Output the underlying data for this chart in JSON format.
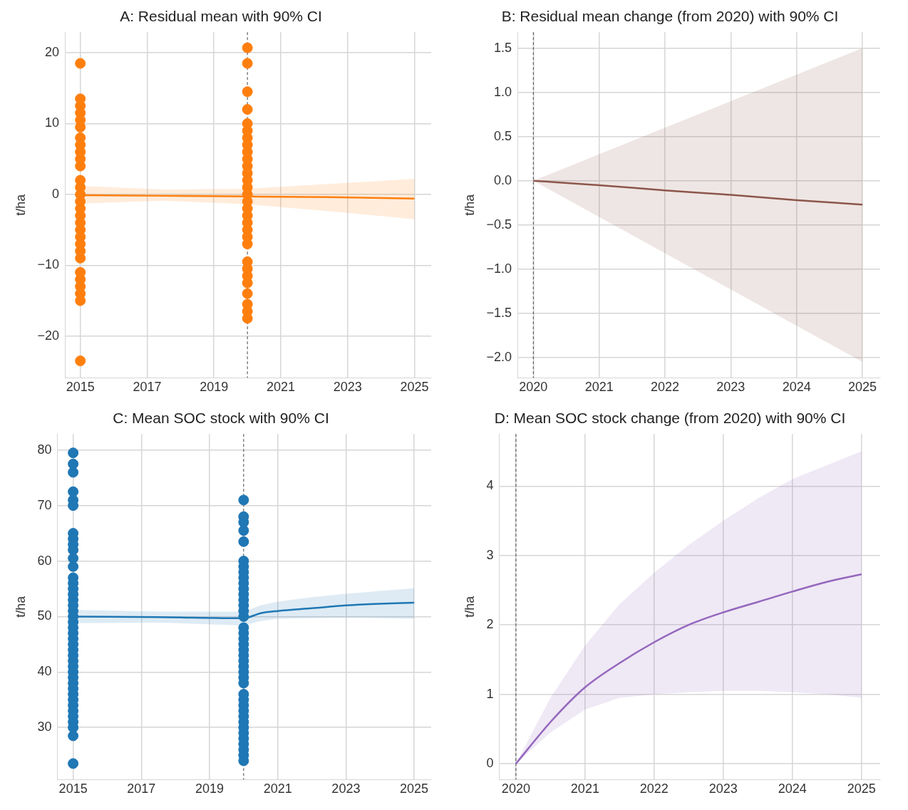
{
  "chart_data": [
    {
      "type": "line",
      "title": "A: Residual mean with 90% CI",
      "ylabel": "t/ha",
      "xlim": [
        2014.54,
        2025.5
      ],
      "xticks": [
        2015,
        2017,
        2019,
        2021,
        2023,
        2025
      ],
      "ylim": [
        -25.9,
        22.9
      ],
      "yticks": [
        -20,
        -10,
        0,
        10,
        20
      ],
      "grid": true,
      "legend": false,
      "ref_lines": [
        {
          "axis": "x",
          "value": 2020,
          "color": "#444444",
          "line_style": "dashed"
        }
      ],
      "series": [
        {
          "type": "scatter",
          "marker": "circle",
          "color": "#ff7f0e",
          "x": [
            2015,
            2015,
            2015,
            2015,
            2015,
            2015,
            2015,
            2015,
            2015,
            2015,
            2015,
            2015,
            2015,
            2015,
            2015,
            2015,
            2015,
            2015,
            2015,
            2015,
            2015,
            2015,
            2015,
            2015,
            2015,
            2015,
            2015,
            2015,
            2015
          ],
          "values": [
            18.5,
            13.5,
            12.5,
            11.5,
            10.5,
            9.5,
            8,
            7,
            6,
            5,
            4,
            2,
            1,
            0,
            -1,
            -2,
            -3,
            -4,
            -5,
            -6,
            -7,
            -8,
            -9,
            -11,
            -12,
            -13,
            -14,
            -15,
            -23.5
          ]
        },
        {
          "type": "scatter",
          "marker": "circle",
          "color": "#ff7f0e",
          "x": [
            2020,
            2020,
            2020,
            2020,
            2020,
            2020,
            2020,
            2020,
            2020,
            2020,
            2020,
            2020,
            2020,
            2020,
            2020,
            2020,
            2020,
            2020,
            2020,
            2020,
            2020,
            2020,
            2020,
            2020,
            2020,
            2020,
            2020,
            2020,
            2020,
            2020
          ],
          "values": [
            20.7,
            18.5,
            14.5,
            12,
            10,
            9,
            8,
            7,
            6,
            5,
            4,
            3,
            2,
            1,
            0,
            -1,
            -2,
            -3,
            -4,
            -5,
            -6,
            -7,
            -9.5,
            -10.5,
            -11.5,
            -12.5,
            -14,
            -15.5,
            -16.5,
            -17.5
          ]
        },
        {
          "type": "line",
          "color": "#ff7f0e",
          "x": [
            2015,
            2017.5,
            2020,
            2022.5,
            2025
          ],
          "values": [
            -0.1,
            -0.2,
            -0.3,
            -0.4,
            -0.6
          ],
          "lower": [
            -1.3,
            -0.9,
            -1.4,
            -2.4,
            -3.5
          ],
          "upper": [
            1.2,
            0.7,
            0.8,
            1.5,
            2.2
          ]
        }
      ]
    },
    {
      "type": "line",
      "title": "B: Residual mean change (from 2020) with 90% CI",
      "ylabel": "t/ha",
      "xlim": [
        2019.76,
        2025.27
      ],
      "xticks": [
        2020,
        2021,
        2022,
        2023,
        2024,
        2025
      ],
      "ylim": [
        -2.23,
        1.68
      ],
      "yticks": [
        {
          "value": -2,
          "label": "−2.0"
        },
        {
          "value": -1.5,
          "label": "−1.5"
        },
        {
          "value": -1,
          "label": "−1.0"
        },
        {
          "value": -0.5,
          "label": "−0.5"
        },
        {
          "value": 0,
          "label": "0.0"
        },
        {
          "value": 0.5,
          "label": "0.5"
        },
        {
          "value": 1,
          "label": "1.0"
        },
        {
          "value": 1.5,
          "label": "1.5"
        }
      ],
      "grid": true,
      "legend": false,
      "ref_lines": [
        {
          "axis": "x",
          "value": 2020,
          "color": "#444444",
          "line_style": "dashed"
        }
      ],
      "series": [
        {
          "type": "line",
          "color": "#8c564b",
          "x": [
            2020,
            2021,
            2022,
            2023,
            2024,
            2025
          ],
          "values": [
            0,
            -0.05,
            -0.11,
            -0.16,
            -0.22,
            -0.27
          ],
          "lower": [
            0,
            -0.41,
            -0.82,
            -1.23,
            -1.64,
            -2.05
          ],
          "upper": [
            0,
            0.3,
            0.6,
            0.9,
            1.2,
            1.5
          ]
        }
      ]
    },
    {
      "type": "line",
      "title": "C: Mean SOC stock with 90% CI",
      "ylabel": "t/ha",
      "xlim": [
        2014.54,
        2025.5
      ],
      "xticks": [
        2015,
        2017,
        2019,
        2021,
        2023,
        2025
      ],
      "ylim": [
        20.6,
        82.9
      ],
      "yticks": [
        30,
        40,
        50,
        60,
        70,
        80
      ],
      "grid": true,
      "legend": false,
      "ref_lines": [
        {
          "axis": "x",
          "value": 2020,
          "color": "#444444",
          "line_style": "dashed"
        }
      ],
      "series": [
        {
          "type": "scatter",
          "marker": "circle",
          "color": "#1f77b4",
          "x": [
            2015,
            2015,
            2015,
            2015,
            2015,
            2015,
            2015,
            2015,
            2015,
            2015,
            2015,
            2015,
            2015,
            2015,
            2015,
            2015,
            2015,
            2015,
            2015,
            2015,
            2015,
            2015,
            2015,
            2015,
            2015,
            2015,
            2015,
            2015,
            2015,
            2015,
            2015,
            2015,
            2015,
            2015,
            2015,
            2015,
            2015,
            2015,
            2015,
            2015,
            2015,
            2015
          ],
          "values": [
            79.5,
            77.5,
            76,
            72.5,
            71,
            70,
            65,
            64,
            63,
            62,
            60.5,
            59,
            57,
            56,
            55,
            54,
            53,
            52,
            51,
            50,
            49,
            48,
            47,
            46,
            45,
            44,
            43,
            42,
            41,
            40,
            39,
            38,
            37,
            36,
            35,
            34,
            33,
            32,
            31,
            30,
            28.5,
            23.5
          ]
        },
        {
          "type": "scatter",
          "marker": "circle",
          "color": "#1f77b4",
          "x": [
            2020,
            2020,
            2020,
            2020,
            2020,
            2020,
            2020,
            2020,
            2020,
            2020,
            2020,
            2020,
            2020,
            2020,
            2020,
            2020,
            2020,
            2020,
            2020,
            2020,
            2020,
            2020,
            2020,
            2020,
            2020,
            2020,
            2020,
            2020,
            2020,
            2020,
            2020,
            2020,
            2020,
            2020,
            2020,
            2020,
            2020,
            2020,
            2020,
            2020
          ],
          "values": [
            71,
            68,
            67,
            65.5,
            63.5,
            60,
            59,
            58,
            57,
            56,
            55,
            54,
            53,
            52,
            51,
            50,
            48,
            47,
            46,
            45,
            44,
            43,
            42,
            41,
            40,
            39,
            38,
            36,
            35,
            34,
            33,
            32,
            31,
            30,
            29,
            28,
            27,
            26,
            25,
            24
          ]
        },
        {
          "type": "line",
          "color": "#1f77b4",
          "x": [
            2015,
            2017.5,
            2020,
            2020.5,
            2021,
            2022,
            2023,
            2024,
            2025
          ],
          "values": [
            50,
            49.9,
            49.7,
            50.6,
            51,
            51.5,
            52,
            52.3,
            52.5
          ],
          "lower": [
            48.8,
            48.9,
            48.4,
            49.2,
            49.6,
            49.7,
            49.8,
            49.7,
            49.6
          ],
          "upper": [
            51.2,
            50.9,
            50.9,
            52,
            52.7,
            53.5,
            54.1,
            54.6,
            55.1
          ]
        }
      ]
    },
    {
      "type": "line",
      "title": "D: Mean SOC stock change (from 2020) with 90% CI",
      "ylabel": "t/ha",
      "xlim": [
        2019.76,
        2025.27
      ],
      "xticks": [
        2020,
        2021,
        2022,
        2023,
        2024,
        2025
      ],
      "ylim": [
        -0.23,
        4.75
      ],
      "yticks": [
        0,
        1,
        2,
        3,
        4
      ],
      "grid": true,
      "legend": false,
      "ref_lines": [
        {
          "axis": "x",
          "value": 2020,
          "color": "#444444",
          "line_style": "dashed"
        }
      ],
      "series": [
        {
          "type": "line",
          "color": "#9467bd",
          "x": [
            2020,
            2020.5,
            2021,
            2021.5,
            2022,
            2022.5,
            2023,
            2023.5,
            2024,
            2024.5,
            2025
          ],
          "values": [
            0,
            0.6,
            1.1,
            1.45,
            1.75,
            2,
            2.18,
            2.33,
            2.48,
            2.62,
            2.73
          ],
          "lower": [
            0,
            0.45,
            0.78,
            0.95,
            1,
            1.03,
            1.05,
            1.05,
            1.03,
            1,
            0.95
          ],
          "upper": [
            0,
            0.95,
            1.7,
            2.3,
            2.75,
            3.15,
            3.5,
            3.82,
            4.1,
            4.3,
            4.5
          ]
        }
      ]
    }
  ]
}
